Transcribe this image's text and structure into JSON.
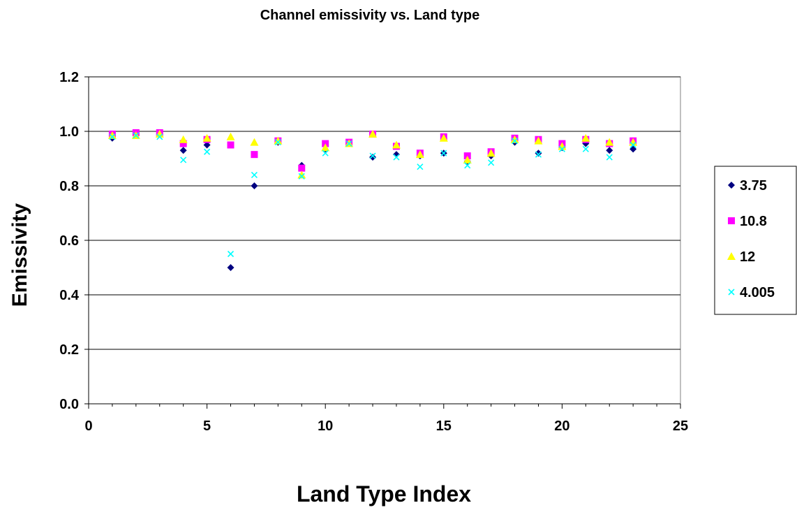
{
  "chart_data": {
    "type": "scatter",
    "title": "Channel emissivity vs. Land type",
    "xlabel": "Land Type Index",
    "ylabel": "Emissivity",
    "xlim": [
      0,
      25
    ],
    "ylim": [
      0.0,
      1.2
    ],
    "x_ticks": [
      "0",
      "5",
      "10",
      "15",
      "20",
      "25"
    ],
    "y_ticks": [
      "0.0",
      "0.2",
      "0.4",
      "0.6",
      "0.8",
      "1.0",
      "1.2"
    ],
    "grid": "horizontal",
    "legend_position": "right",
    "x": [
      1,
      2,
      3,
      4,
      5,
      6,
      7,
      8,
      9,
      10,
      11,
      12,
      13,
      14,
      15,
      16,
      17,
      18,
      19,
      20,
      21,
      22,
      23
    ],
    "series": [
      {
        "name": "3.75",
        "marker": "diamond",
        "color": "#000080",
        "values": [
          0.975,
          0.99,
          0.99,
          0.93,
          0.95,
          0.5,
          0.8,
          0.96,
          0.875,
          0.93,
          0.955,
          0.905,
          0.915,
          0.91,
          0.92,
          0.89,
          0.91,
          0.96,
          0.92,
          0.94,
          0.955,
          0.93,
          0.935
        ]
      },
      {
        "name": "10.8",
        "marker": "square",
        "color": "#ff00ff",
        "values": [
          0.99,
          0.995,
          0.995,
          0.955,
          0.97,
          0.95,
          0.915,
          0.965,
          0.865,
          0.955,
          0.96,
          0.99,
          0.945,
          0.92,
          0.98,
          0.91,
          0.925,
          0.975,
          0.97,
          0.955,
          0.97,
          0.955,
          0.965
        ]
      },
      {
        "name": "12",
        "marker": "triangle",
        "color": "#ffff00",
        "values": [
          0.985,
          0.985,
          0.99,
          0.97,
          0.975,
          0.98,
          0.96,
          0.965,
          0.84,
          0.94,
          0.955,
          0.99,
          0.95,
          0.915,
          0.975,
          0.895,
          0.92,
          0.97,
          0.965,
          0.945,
          0.975,
          0.96,
          0.96
        ]
      },
      {
        "name": "4.005",
        "marker": "x",
        "color": "#00ffff",
        "values": [
          0.98,
          0.985,
          0.98,
          0.895,
          0.925,
          0.55,
          0.84,
          0.96,
          0.835,
          0.92,
          0.955,
          0.91,
          0.905,
          0.87,
          0.92,
          0.875,
          0.885,
          0.965,
          0.915,
          0.935,
          0.935,
          0.905,
          0.95
        ]
      }
    ]
  }
}
